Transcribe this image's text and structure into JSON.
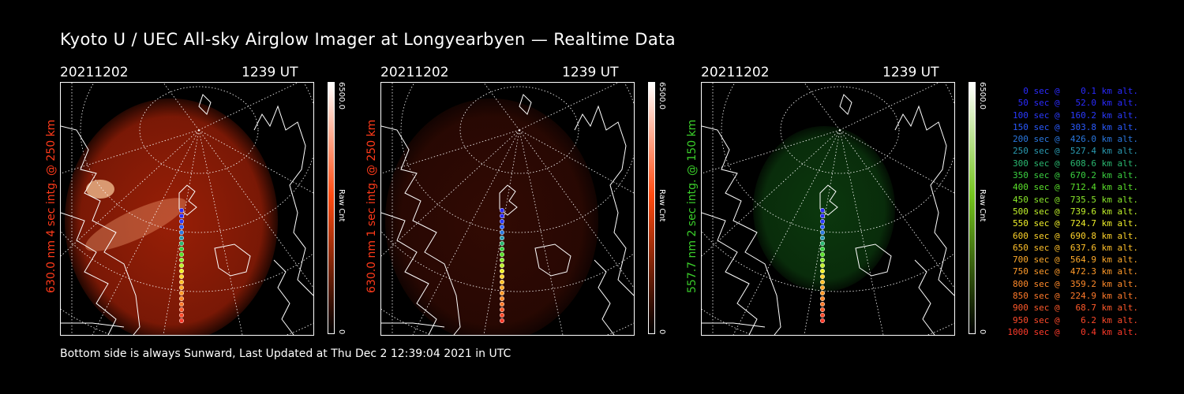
{
  "title": "Kyoto U / UEC All-sky Airglow Imager at Longyearbyen — Realtime Data",
  "footer": "Bottom side is always Sunward, Last Updated at Thu Dec  2 12:39:04 2021 in UTC",
  "panels": [
    {
      "date": "20211202",
      "time": "1239 UT",
      "ylabel": "630.0 nm 4 sec intg. @ 250 km",
      "label_color": "#ff3a1a",
      "glow_color": "#b32408",
      "glow_strength": 0.85,
      "cb_max": "6500.0",
      "cb_label": "Raw Cnt",
      "cb_min": "0",
      "cb_top_color": "#ff4a10"
    },
    {
      "date": "20211202",
      "time": "1239 UT",
      "ylabel": "630.0 nm 1 sec intg. @ 250 km",
      "label_color": "#ff3a1a",
      "glow_color": "#5a1206",
      "glow_strength": 0.55,
      "cb_max": "6500.0",
      "cb_label": "Raw Cnt",
      "cb_min": "0",
      "cb_top_color": "#ff4a10"
    },
    {
      "date": "20211202",
      "time": "1239 UT",
      "ylabel": "557.7 nm 2 sec intg. @ 150 km",
      "label_color": "#3acd2a",
      "glow_color": "#0f4a12",
      "glow_strength": 0.75,
      "cb_max": "6500.0",
      "cb_label": "Raw Cnt",
      "cb_min": "0",
      "cb_top_color": "#74c41e"
    }
  ],
  "legend": [
    {
      "text": "   0 sec @    0.1 km alt.",
      "color": "#2a2aff"
    },
    {
      "text": "  50 sec @   52.0 km alt.",
      "color": "#2a2aff"
    },
    {
      "text": " 100 sec @  160.2 km alt.",
      "color": "#2a3aff"
    },
    {
      "text": " 150 sec @  303.8 km alt.",
      "color": "#2a5aff"
    },
    {
      "text": " 200 sec @  426.0 km alt.",
      "color": "#2a78e0"
    },
    {
      "text": " 250 sec @  527.4 km alt.",
      "color": "#2a9ab0"
    },
    {
      "text": " 300 sec @  608.6 km alt.",
      "color": "#2ab870"
    },
    {
      "text": " 350 sec @  670.2 km alt.",
      "color": "#3ad040"
    },
    {
      "text": " 400 sec @  712.4 km alt.",
      "color": "#5ae02a"
    },
    {
      "text": " 450 sec @  735.5 km alt.",
      "color": "#8ae82a"
    },
    {
      "text": " 500 sec @  739.6 km alt.",
      "color": "#c0f02a"
    },
    {
      "text": " 550 sec @  724.7 km alt.",
      "color": "#f0f02a"
    },
    {
      "text": " 600 sec @  690.8 km alt.",
      "color": "#ffd42a"
    },
    {
      "text": " 650 sec @  637.6 km alt.",
      "color": "#ffc02a"
    },
    {
      "text": " 700 sec @  564.9 km alt.",
      "color": "#ffaa2a"
    },
    {
      "text": " 750 sec @  472.3 km alt.",
      "color": "#ff9a2a"
    },
    {
      "text": " 800 sec @  359.2 km alt.",
      "color": "#ff8a2a"
    },
    {
      "text": " 850 sec @  224.9 km alt.",
      "color": "#ff7a2a"
    },
    {
      "text": " 900 sec @   68.7 km alt.",
      "color": "#ff5a2a"
    },
    {
      "text": " 950 sec @    6.2 km alt.",
      "color": "#ff4a2a"
    },
    {
      "text": "1000 sec @    0.4 km alt.",
      "color": "#ff3a2a"
    }
  ]
}
